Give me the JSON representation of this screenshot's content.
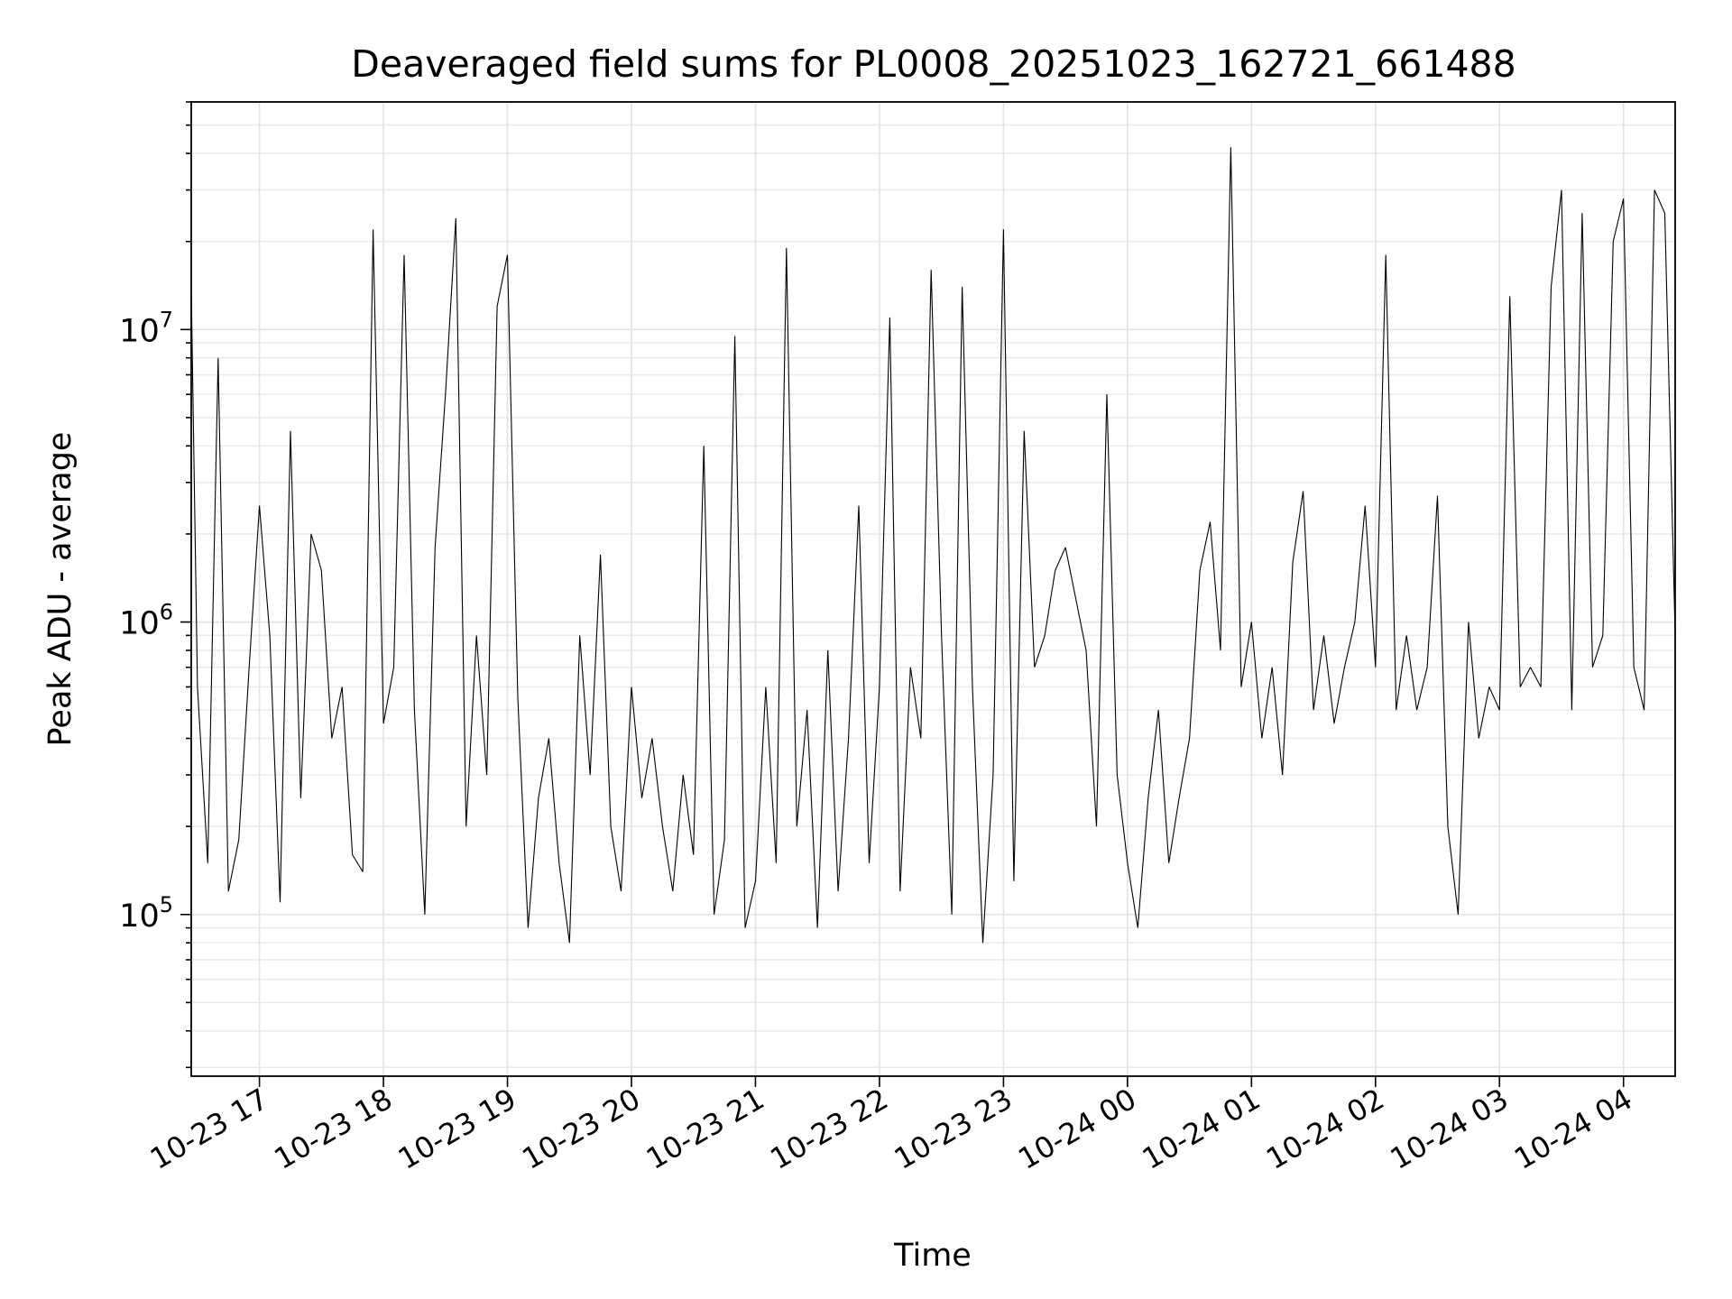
{
  "chart_data": {
    "type": "line",
    "title": "Deaveraged field sums for PL0008_20251023_162721_661488",
    "xlabel": "Time",
    "ylabel": "Peak ADU - average",
    "yscale": "log",
    "grid": true,
    "xlim": [
      "2025-10-23 16:27",
      "2025-10-24 04:25"
    ],
    "ylim": [
      28000,
      60000000
    ],
    "x_ticks": [
      {
        "value": "2025-10-23 17:00",
        "label": "10-23 17"
      },
      {
        "value": "2025-10-23 18:00",
        "label": "10-23 18"
      },
      {
        "value": "2025-10-23 19:00",
        "label": "10-23 19"
      },
      {
        "value": "2025-10-23 20:00",
        "label": "10-23 20"
      },
      {
        "value": "2025-10-23 21:00",
        "label": "10-23 21"
      },
      {
        "value": "2025-10-23 22:00",
        "label": "10-23 22"
      },
      {
        "value": "2025-10-23 23:00",
        "label": "10-23 23"
      },
      {
        "value": "2025-10-24 00:00",
        "label": "10-24 00"
      },
      {
        "value": "2025-10-24 01:00",
        "label": "10-24 01"
      },
      {
        "value": "2025-10-24 02:00",
        "label": "10-24 02"
      },
      {
        "value": "2025-10-24 03:00",
        "label": "10-24 03"
      },
      {
        "value": "2025-10-24 04:00",
        "label": "10-24 04"
      }
    ],
    "y_ticks": [
      {
        "value": 100000,
        "base": "10",
        "exp": "5"
      },
      {
        "value": 1000000,
        "base": "10",
        "exp": "6"
      },
      {
        "value": 10000000,
        "base": "10",
        "exp": "7"
      }
    ],
    "series_color": "#000000",
    "series": [
      {
        "x": [
          "2025-10-23 16:27",
          "2025-10-23 16:30",
          "2025-10-23 16:35",
          "2025-10-23 16:40",
          "2025-10-23 16:45",
          "2025-10-23 16:50",
          "2025-10-23 16:55",
          "2025-10-23 17:00",
          "2025-10-23 17:05",
          "2025-10-23 17:10",
          "2025-10-23 17:15",
          "2025-10-23 17:20",
          "2025-10-23 17:25",
          "2025-10-23 17:30",
          "2025-10-23 17:35",
          "2025-10-23 17:40",
          "2025-10-23 17:45",
          "2025-10-23 17:50",
          "2025-10-23 17:55",
          "2025-10-23 18:00",
          "2025-10-23 18:05",
          "2025-10-23 18:10",
          "2025-10-23 18:15",
          "2025-10-23 18:20",
          "2025-10-23 18:25",
          "2025-10-23 18:30",
          "2025-10-23 18:35",
          "2025-10-23 18:40",
          "2025-10-23 18:45",
          "2025-10-23 18:50",
          "2025-10-23 18:55",
          "2025-10-23 19:00",
          "2025-10-23 19:05",
          "2025-10-23 19:10",
          "2025-10-23 19:15",
          "2025-10-23 19:20",
          "2025-10-23 19:25",
          "2025-10-23 19:30",
          "2025-10-23 19:35",
          "2025-10-23 19:40",
          "2025-10-23 19:45",
          "2025-10-23 19:50",
          "2025-10-23 19:55",
          "2025-10-23 20:00",
          "2025-10-23 20:05",
          "2025-10-23 20:10",
          "2025-10-23 20:15",
          "2025-10-23 20:20",
          "2025-10-23 20:25",
          "2025-10-23 20:30",
          "2025-10-23 20:35",
          "2025-10-23 20:40",
          "2025-10-23 20:45",
          "2025-10-23 20:50",
          "2025-10-23 20:55",
          "2025-10-23 21:00",
          "2025-10-23 21:05",
          "2025-10-23 21:10",
          "2025-10-23 21:15",
          "2025-10-23 21:20",
          "2025-10-23 21:25",
          "2025-10-23 21:30",
          "2025-10-23 21:35",
          "2025-10-23 21:40",
          "2025-10-23 21:45",
          "2025-10-23 21:50",
          "2025-10-23 21:55",
          "2025-10-23 22:00",
          "2025-10-23 22:05",
          "2025-10-23 22:10",
          "2025-10-23 22:15",
          "2025-10-23 22:20",
          "2025-10-23 22:25",
          "2025-10-23 22:30",
          "2025-10-23 22:35",
          "2025-10-23 22:40",
          "2025-10-23 22:45",
          "2025-10-23 22:50",
          "2025-10-23 22:55",
          "2025-10-23 23:00",
          "2025-10-23 23:05",
          "2025-10-23 23:10",
          "2025-10-23 23:15",
          "2025-10-23 23:20",
          "2025-10-23 23:25",
          "2025-10-23 23:30",
          "2025-10-23 23:35",
          "2025-10-23 23:40",
          "2025-10-23 23:45",
          "2025-10-23 23:50",
          "2025-10-23 23:55",
          "2025-10-24 00:00",
          "2025-10-24 00:05",
          "2025-10-24 00:10",
          "2025-10-24 00:15",
          "2025-10-24 00:20",
          "2025-10-24 00:25",
          "2025-10-24 00:30",
          "2025-10-24 00:35",
          "2025-10-24 00:40",
          "2025-10-24 00:45",
          "2025-10-24 00:50",
          "2025-10-24 00:55",
          "2025-10-24 01:00",
          "2025-10-24 01:05",
          "2025-10-24 01:10",
          "2025-10-24 01:15",
          "2025-10-24 01:20",
          "2025-10-24 01:25",
          "2025-10-24 01:30",
          "2025-10-24 01:35",
          "2025-10-24 01:40",
          "2025-10-24 01:45",
          "2025-10-24 01:50",
          "2025-10-24 01:55",
          "2025-10-24 02:00",
          "2025-10-24 02:05",
          "2025-10-24 02:10",
          "2025-10-24 02:15",
          "2025-10-24 02:20",
          "2025-10-24 02:25",
          "2025-10-24 02:30",
          "2025-10-24 02:35",
          "2025-10-24 02:40",
          "2025-10-24 02:45",
          "2025-10-24 02:50",
          "2025-10-24 02:55",
          "2025-10-24 03:00",
          "2025-10-24 03:05",
          "2025-10-24 03:10",
          "2025-10-24 03:15",
          "2025-10-24 03:20",
          "2025-10-24 03:25",
          "2025-10-24 03:30",
          "2025-10-24 03:35",
          "2025-10-24 03:40",
          "2025-10-24 03:45",
          "2025-10-24 03:50",
          "2025-10-24 03:55",
          "2025-10-24 04:00",
          "2025-10-24 04:05",
          "2025-10-24 04:10",
          "2025-10-24 04:15",
          "2025-10-24 04:20",
          "2025-10-24 04:25"
        ],
        "values": [
          14000000,
          600000,
          150000,
          8000000,
          120000,
          180000,
          700000,
          2500000,
          900000,
          110000,
          4500000,
          250000,
          2000000,
          1500000,
          400000,
          600000,
          160000,
          140000,
          22000000,
          450000,
          700000,
          18000000,
          500000,
          100000,
          1800000,
          6000000,
          24000000,
          200000,
          900000,
          300000,
          12000000,
          18000000,
          550000,
          90000,
          250000,
          400000,
          150000,
          80000,
          900000,
          300000,
          1700000,
          200000,
          120000,
          600000,
          250000,
          400000,
          200000,
          120000,
          300000,
          160000,
          4000000,
          100000,
          180000,
          9500000,
          90000,
          130000,
          600000,
          150000,
          19000000,
          200000,
          500000,
          90000,
          800000,
          120000,
          400000,
          2500000,
          150000,
          600000,
          11000000,
          120000,
          700000,
          400000,
          16000000,
          900000,
          100000,
          14000000,
          600000,
          80000,
          300000,
          22000000,
          130000,
          4500000,
          700000,
          900000,
          1500000,
          1800000,
          1200000,
          800000,
          200000,
          6000000,
          300000,
          150000,
          90000,
          250000,
          500000,
          150000,
          250000,
          400000,
          1500000,
          2200000,
          800000,
          42000000,
          600000,
          1000000,
          400000,
          700000,
          300000,
          1600000,
          2800000,
          500000,
          900000,
          450000,
          700000,
          1000000,
          2500000,
          700000,
          18000000,
          500000,
          900000,
          500000,
          700000,
          2700000,
          200000,
          100000,
          1000000,
          400000,
          600000,
          500000,
          13000000,
          600000,
          700000,
          600000,
          14000000,
          30000000,
          500000,
          25000000,
          700000,
          900000,
          20000000,
          28000000,
          700000,
          500000,
          30000000,
          25000000,
          900000
        ]
      }
    ]
  }
}
